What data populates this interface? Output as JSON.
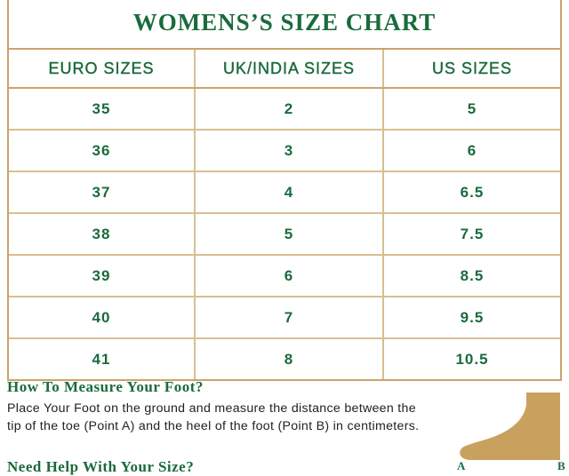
{
  "title": "WOMENS’S SIZE CHART",
  "headers": [
    "EURO SIZES",
    "UK/INDIA SIZES",
    "US SIZES"
  ],
  "rows": [
    [
      "35",
      "2",
      "5"
    ],
    [
      "36",
      "3",
      "6"
    ],
    [
      "37",
      "4",
      "6.5"
    ],
    [
      "38",
      "5",
      "7.5"
    ],
    [
      "39",
      "6",
      "8.5"
    ],
    [
      "40",
      "7",
      "9.5"
    ],
    [
      "41",
      "8",
      "10.5"
    ]
  ],
  "measure": {
    "heading": "How To Measure Your Foot?",
    "text": "Place Your Foot on the ground and measure the distance between the tip of the toe (Point A) and the heel of the foot (Point B) in centimeters.",
    "point_a": "A",
    "point_b": "B"
  },
  "help": {
    "heading": "Need Help With Your Size?"
  },
  "colors": {
    "accent": "#1a6b3c",
    "border": "#c9a46a",
    "foot": "#c9a15f"
  }
}
